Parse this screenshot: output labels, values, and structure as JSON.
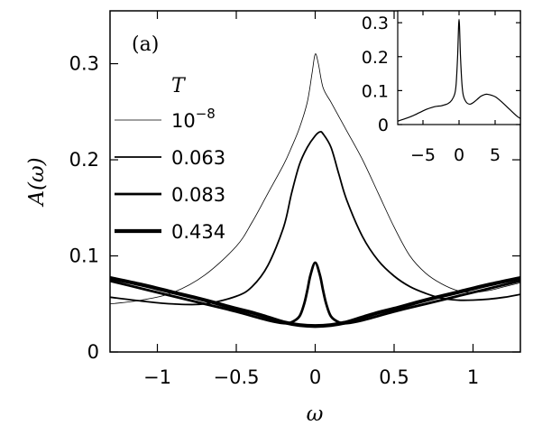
{
  "chart_data": [
    {
      "type": "line",
      "panel_label": "(a)",
      "xlabel": "ω",
      "ylabel": "A(ω)",
      "xlim": [
        -1.3,
        1.3
      ],
      "ylim": [
        0,
        0.355
      ],
      "xticks": [
        -1,
        -0.5,
        0,
        0.5,
        1
      ],
      "xtick_labels": [
        "−1",
        "−0.5",
        "0",
        "0.5",
        "1"
      ],
      "yticks": [
        0,
        0.1,
        0.2,
        0.3
      ],
      "ytick_labels": [
        "0",
        "0.1",
        "0.2",
        "0.3"
      ],
      "grid": false,
      "legend_title": "T",
      "legend_placement": "left",
      "series": [
        {
          "name": "10^-8",
          "name_base": "10",
          "name_exp": "−8",
          "line_width": 0.8,
          "x": [
            -1.3,
            -1.1,
            -0.9,
            -0.7,
            -0.5,
            -0.4,
            -0.3,
            -0.2,
            -0.15,
            -0.1,
            -0.05,
            -0.02,
            0.0,
            0.02,
            0.05,
            0.1,
            0.15,
            0.2,
            0.3,
            0.4,
            0.5,
            0.6,
            0.7,
            0.8,
            0.9,
            1.0,
            1.1,
            1.2,
            1.3
          ],
          "y": [
            0.05,
            0.054,
            0.062,
            0.08,
            0.11,
            0.135,
            0.165,
            0.195,
            0.213,
            0.233,
            0.26,
            0.29,
            0.31,
            0.3,
            0.275,
            0.26,
            0.245,
            0.23,
            0.2,
            0.165,
            0.13,
            0.1,
            0.082,
            0.071,
            0.064,
            0.062,
            0.064,
            0.068,
            0.072
          ]
        },
        {
          "name": "0.063",
          "line_width": 1.8,
          "x": [
            -1.3,
            -1.1,
            -0.9,
            -0.7,
            -0.5,
            -0.4,
            -0.3,
            -0.2,
            -0.15,
            -0.1,
            -0.05,
            0.0,
            0.03,
            0.05,
            0.1,
            0.15,
            0.2,
            0.3,
            0.4,
            0.5,
            0.6,
            0.7,
            0.8,
            0.9,
            1.0,
            1.1,
            1.2,
            1.3
          ],
          "y": [
            0.057,
            0.053,
            0.05,
            0.05,
            0.058,
            0.068,
            0.09,
            0.13,
            0.165,
            0.195,
            0.213,
            0.225,
            0.229,
            0.227,
            0.213,
            0.185,
            0.158,
            0.12,
            0.095,
            0.079,
            0.068,
            0.061,
            0.056,
            0.054,
            0.054,
            0.055,
            0.057,
            0.06
          ]
        },
        {
          "name": "0.083",
          "line_width": 2.8,
          "x": [
            -1.3,
            -1.1,
            -0.9,
            -0.7,
            -0.5,
            -0.3,
            -0.2,
            -0.15,
            -0.1,
            -0.07,
            -0.05,
            -0.03,
            0.0,
            0.03,
            0.05,
            0.07,
            0.1,
            0.15,
            0.2,
            0.3,
            0.5,
            0.7,
            0.9,
            1.1,
            1.3
          ],
          "y": [
            0.074,
            0.066,
            0.058,
            0.05,
            0.042,
            0.033,
            0.03,
            0.031,
            0.037,
            0.05,
            0.064,
            0.08,
            0.093,
            0.08,
            0.064,
            0.05,
            0.037,
            0.031,
            0.03,
            0.033,
            0.042,
            0.05,
            0.058,
            0.066,
            0.074
          ]
        },
        {
          "name": "0.434",
          "line_width": 4.2,
          "x": [
            -1.3,
            -1.1,
            -0.9,
            -0.7,
            -0.5,
            -0.4,
            -0.3,
            -0.2,
            -0.1,
            0.0,
            0.1,
            0.2,
            0.3,
            0.4,
            0.5,
            0.7,
            0.9,
            1.1,
            1.3
          ],
          "y": [
            0.077,
            0.07,
            0.062,
            0.054,
            0.045,
            0.041,
            0.036,
            0.031,
            0.028,
            0.027,
            0.028,
            0.031,
            0.036,
            0.041,
            0.045,
            0.054,
            0.062,
            0.07,
            0.077
          ]
        }
      ]
    },
    {
      "type": "line",
      "role": "inset",
      "xlim": [
        -8.5,
        8.5
      ],
      "ylim": [
        0,
        0.335
      ],
      "xticks": [
        -5,
        0,
        5
      ],
      "xtick_labels": [
        "−5",
        "0",
        "5"
      ],
      "yticks": [
        0,
        0.1,
        0.2,
        0.3
      ],
      "ytick_labels": [
        "0",
        "0.1",
        "0.2",
        "0.3"
      ],
      "grid": false,
      "series": [
        {
          "x": [
            -8.5,
            -7.5,
            -6.5,
            -5.5,
            -4.5,
            -3.5,
            -3.0,
            -2.5,
            -2.0,
            -1.5,
            -1.0,
            -0.6,
            -0.4,
            -0.2,
            0.0,
            0.2,
            0.4,
            0.6,
            1.0,
            1.5,
            2.0,
            2.5,
            3.0,
            3.5,
            4.0,
            5.0,
            6.0,
            7.0,
            8.0,
            8.5
          ],
          "y": [
            0.01,
            0.017,
            0.025,
            0.035,
            0.045,
            0.052,
            0.054,
            0.055,
            0.058,
            0.062,
            0.072,
            0.09,
            0.12,
            0.2,
            0.31,
            0.2,
            0.12,
            0.085,
            0.066,
            0.06,
            0.065,
            0.074,
            0.083,
            0.088,
            0.089,
            0.082,
            0.065,
            0.045,
            0.025,
            0.018
          ]
        }
      ]
    }
  ]
}
